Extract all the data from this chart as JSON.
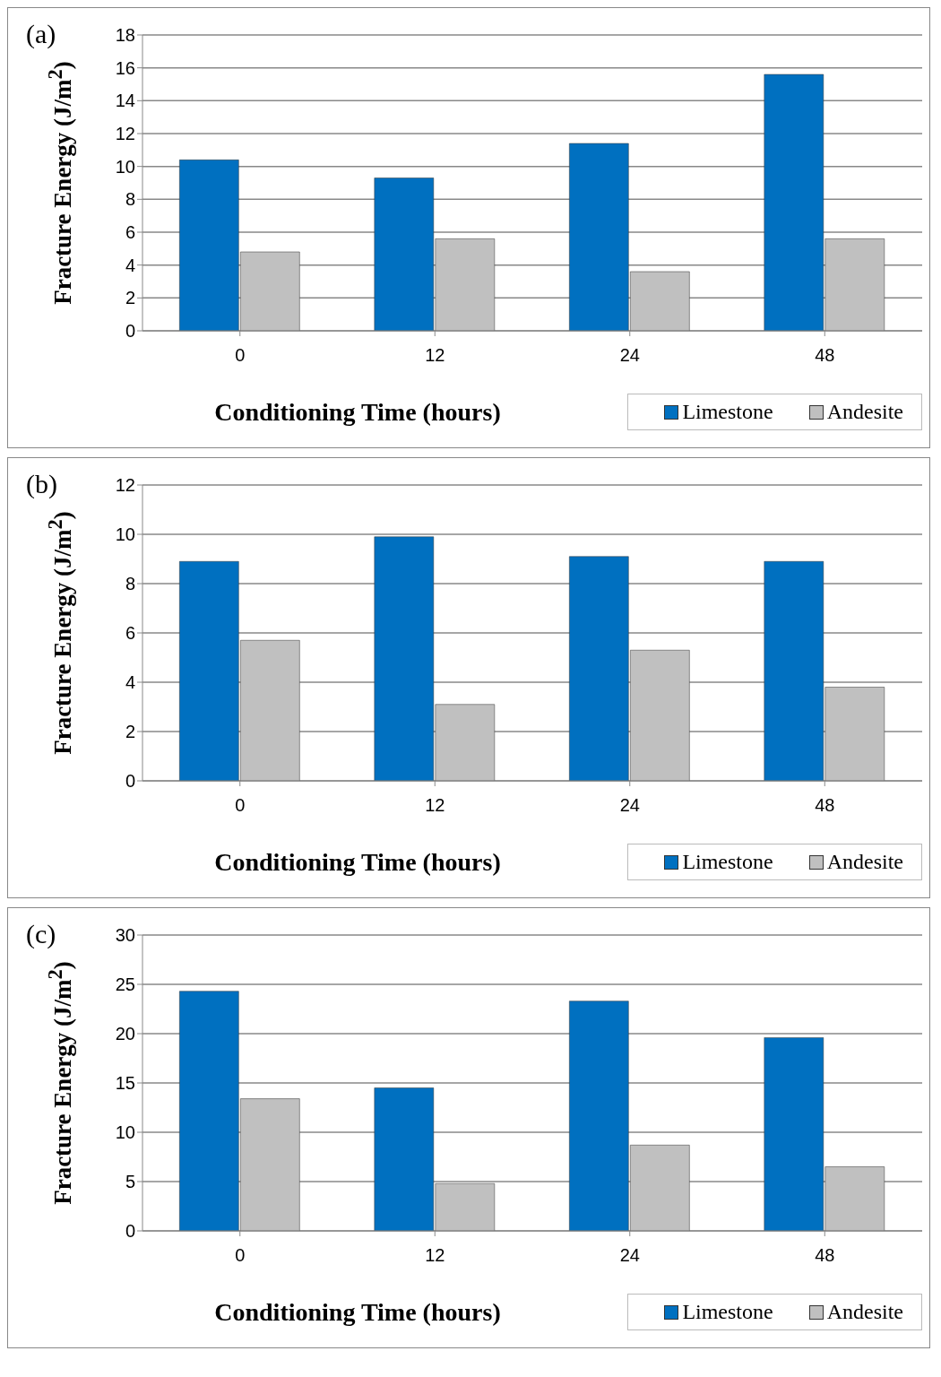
{
  "chart_data": [
    {
      "type": "bar",
      "title": "(a)",
      "xlabel": "Conditioning Time (hours)",
      "ylabel": "Fracture Energy (J/m$^{2}$)",
      "categories": [
        "0",
        "12",
        "24",
        "48"
      ],
      "series": [
        {
          "name": "Limestone",
          "color": "#0070c0",
          "values": [
            10.4,
            9.3,
            11.4,
            15.6
          ]
        },
        {
          "name": "Andesite",
          "color": "#c0c0c0",
          "values": [
            4.8,
            5.6,
            3.6,
            5.6
          ]
        }
      ],
      "ylim": [
        0,
        18
      ],
      "yticks": [
        0,
        2,
        4,
        6,
        8,
        10,
        12,
        14,
        16,
        18
      ],
      "grid": "y",
      "legend": "bottom right"
    },
    {
      "type": "bar",
      "title": "(b)",
      "xlabel": "Conditioning Time (hours)",
      "ylabel": "Fracture Energy (J/m$^{2}$)",
      "categories": [
        "0",
        "12",
        "24",
        "48"
      ],
      "series": [
        {
          "name": "Limestone",
          "color": "#0070c0",
          "values": [
            8.9,
            9.9,
            9.1,
            8.9
          ]
        },
        {
          "name": "Andesite",
          "color": "#c0c0c0",
          "values": [
            5.7,
            3.1,
            5.3,
            3.8
          ]
        }
      ],
      "ylim": [
        0,
        12
      ],
      "yticks": [
        0,
        2,
        4,
        6,
        8,
        10,
        12
      ],
      "grid": "y",
      "legend": "bottom right"
    },
    {
      "type": "bar",
      "title": "(c)",
      "xlabel": "Conditioning Time (hours)",
      "ylabel": "Fracture Energy (J/m$^{2}$)",
      "categories": [
        "0",
        "12",
        "24",
        "48"
      ],
      "series": [
        {
          "name": "Limestone",
          "color": "#0070c0",
          "values": [
            24.3,
            14.5,
            23.3,
            19.6
          ]
        },
        {
          "name": "Andesite",
          "color": "#c0c0c0",
          "values": [
            13.4,
            4.8,
            8.7,
            6.5
          ]
        }
      ],
      "ylim": [
        0,
        30
      ],
      "yticks": [
        0,
        5,
        10,
        15,
        20,
        25,
        30
      ],
      "grid": "y",
      "legend": "bottom right"
    }
  ]
}
